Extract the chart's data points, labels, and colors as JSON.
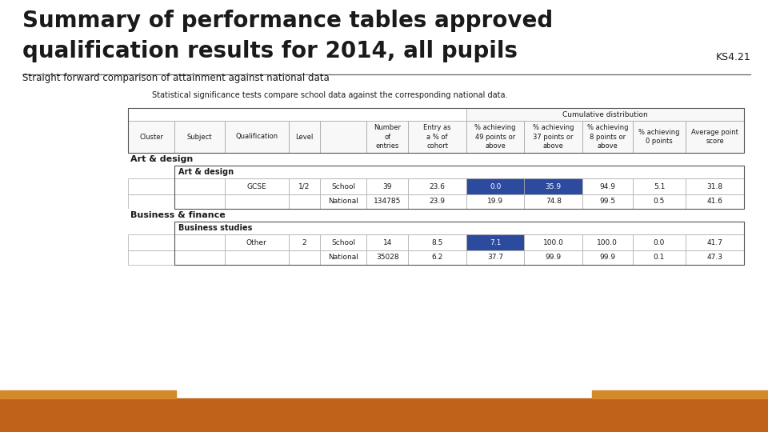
{
  "title_line1": "Summary of performance tables approved",
  "title_line2": "qualification results for 2014, all pupils",
  "ks_label": "KS4.21",
  "subtitle": "Straight forward comparison of attainment against national data",
  "note": "Statistical significance tests compare school data against the corresponding national data.",
  "bg_color": "#ffffff",
  "bottom_bar_color": "#c0621a",
  "bottom_bar_accent_color": "#d4892a",
  "title_color": "#1a1a1a",
  "cumulative_header": "Cumulative distribution",
  "cluster1": "Art & design",
  "subject1": "Art & design",
  "qual1": "GCSE",
  "level1": "1/2",
  "school1_num": "39",
  "school1_entry": "23.6",
  "school1_49": "0.0",
  "school1_37": "35.9",
  "school1_8": "94.9",
  "school1_0": "5.1",
  "school1_avg": "31.8",
  "national1_num": "134785",
  "national1_entry": "23.9",
  "national1_49": "19.9",
  "national1_37": "74.8",
  "national1_8": "99.5",
  "national1_0": "0.5",
  "national1_avg": "41.6",
  "cluster2": "Business & finance",
  "subject2": "Business studies",
  "qual2": "Other",
  "level2": "2",
  "school2_num": "14",
  "school2_entry": "8.5",
  "school2_49": "7.1",
  "school2_37": "100.0",
  "school2_8": "100.0",
  "school2_0": "0.0",
  "school2_avg": "41.7",
  "national2_num": "35028",
  "national2_entry": "6.2",
  "national2_49": "37.7",
  "national2_37": "99.9",
  "national2_8": "99.9",
  "national2_0": "0.1",
  "national2_avg": "47.3",
  "highlight_color": "#2d4b9e",
  "highlight_text_color": "#ffffff",
  "table_border": "#aaaaaa",
  "col_header_bg": "#f8f8f8"
}
